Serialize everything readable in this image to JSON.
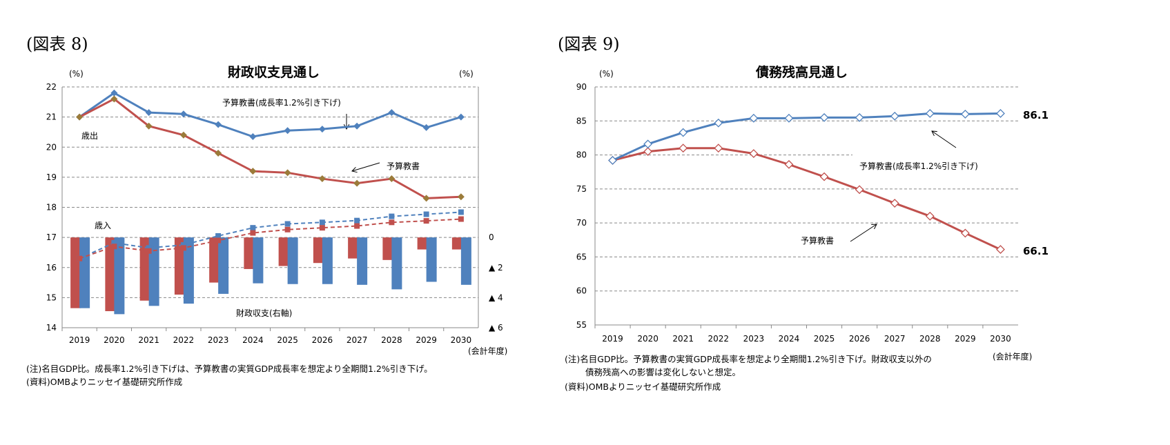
{
  "figures": {
    "left": "(図表 8)",
    "right": "(図表 9)"
  },
  "chart_data": [
    {
      "type": "bar+line",
      "title": "財政収支見通し",
      "ylabel_left": "(%)",
      "ylabel_right": "(%)",
      "xlabel": "(会計年度)",
      "categories": [
        "2019",
        "2020",
        "2021",
        "2022",
        "2023",
        "2024",
        "2025",
        "2026",
        "2027",
        "2028",
        "2029",
        "2030"
      ],
      "ylim_left": [
        14,
        22
      ],
      "yticks_left": [
        "14",
        "15",
        "16",
        "17",
        "18",
        "19",
        "20",
        "21",
        "22"
      ],
      "ylim_right": [
        -6,
        0
      ],
      "yticks_right": [
        "0",
        "▲ 2",
        "▲ 4",
        "▲ 6"
      ],
      "grid": true,
      "series": [
        {
          "group": "歳出",
          "scenario": "予算教書(成長率1.2%引き下げ)",
          "axis": "left",
          "style": "solid-line",
          "color": "#4F81BD",
          "values": [
            21.0,
            21.8,
            21.15,
            21.1,
            20.75,
            20.35,
            20.55,
            20.6,
            20.7,
            21.15,
            20.65,
            21.0
          ]
        },
        {
          "group": "歳出",
          "scenario": "予算教書",
          "axis": "left",
          "style": "solid-line",
          "color": "#C0504D",
          "values": [
            21.0,
            21.6,
            20.7,
            20.4,
            19.8,
            19.2,
            19.15,
            18.95,
            18.8,
            18.95,
            18.3,
            18.35
          ]
        },
        {
          "group": "歳入",
          "scenario": "予算教書(成長率1.2%引き下げ)",
          "axis": "left",
          "style": "dashed-line",
          "color": "#4F81BD",
          "values": [
            16.3,
            16.82,
            16.65,
            16.75,
            17.05,
            17.32,
            17.45,
            17.5,
            17.56,
            17.7,
            17.77,
            17.84
          ]
        },
        {
          "group": "歳入",
          "scenario": "予算教書",
          "axis": "left",
          "style": "dashed-line",
          "color": "#C0504D",
          "values": [
            16.3,
            16.7,
            16.55,
            16.65,
            16.9,
            17.15,
            17.26,
            17.32,
            17.38,
            17.5,
            17.55,
            17.61
          ]
        },
        {
          "group": "財政収支(右軸)",
          "scenario": "予算教書",
          "axis": "right",
          "style": "bar",
          "color": "#C0504D",
          "values": [
            -4.7,
            -4.9,
            -4.2,
            -3.8,
            -3.0,
            -2.1,
            -1.9,
            -1.7,
            -1.4,
            -1.5,
            -0.8,
            -0.8
          ]
        },
        {
          "group": "財政収支(右軸)",
          "scenario": "予算教書(成長率1.2%引き下げ)",
          "axis": "right",
          "style": "bar",
          "color": "#4F81BD",
          "values": [
            -4.7,
            -5.1,
            -4.55,
            -4.4,
            -3.75,
            -3.05,
            -3.1,
            -3.1,
            -3.15,
            -3.45,
            -2.95,
            -3.15
          ]
        }
      ],
      "annotations": {
        "blue_line": "予算教書(成長率1.2%引き下げ)",
        "red_line": "予算教書",
        "expenditure": "歳出",
        "revenue": "歳入",
        "balance": "財政収支(右軸)"
      },
      "notes": [
        "(注)名目GDP比。成長率1.2%引き下げは、予算教書の実質GDP成長率を想定より全期間1.2%引き下げ。",
        "(資料)OMBよりニッセイ基礎研究所作成"
      ]
    },
    {
      "type": "line",
      "title": "債務残高見通し",
      "ylabel": "(%)",
      "xlabel": "(会計年度)",
      "categories": [
        "2019",
        "2020",
        "2021",
        "2022",
        "2023",
        "2024",
        "2025",
        "2026",
        "2027",
        "2028",
        "2029",
        "2030"
      ],
      "ylim": [
        55,
        90
      ],
      "yticks": [
        "55",
        "60",
        "65",
        "70",
        "75",
        "80",
        "85",
        "90"
      ],
      "grid": true,
      "series": [
        {
          "scenario": "予算教書(成長率1.2%引き下げ)",
          "color": "#4F81BD",
          "values": [
            79.2,
            81.6,
            83.3,
            84.7,
            85.4,
            85.4,
            85.5,
            85.5,
            85.7,
            86.1,
            86.0,
            86.1
          ],
          "end_label": "86.1"
        },
        {
          "scenario": "予算教書",
          "color": "#C0504D",
          "values": [
            79.2,
            80.5,
            81.0,
            81.0,
            80.2,
            78.6,
            76.8,
            74.9,
            72.9,
            71.0,
            68.5,
            66.1
          ],
          "end_label": "66.1"
        }
      ],
      "annotations": {
        "blue_line": "予算教書(成長率1.2%引き下げ)",
        "red_line": "予算教書"
      },
      "notes": [
        "(注)名目GDP比。予算教書の実質GDP成長率を想定より全期間1.2%引き下げ。財政収支以外の",
        "債務残高への影響は変化しないと想定。",
        "(資料)OMBよりニッセイ基礎研究所作成"
      ]
    }
  ]
}
